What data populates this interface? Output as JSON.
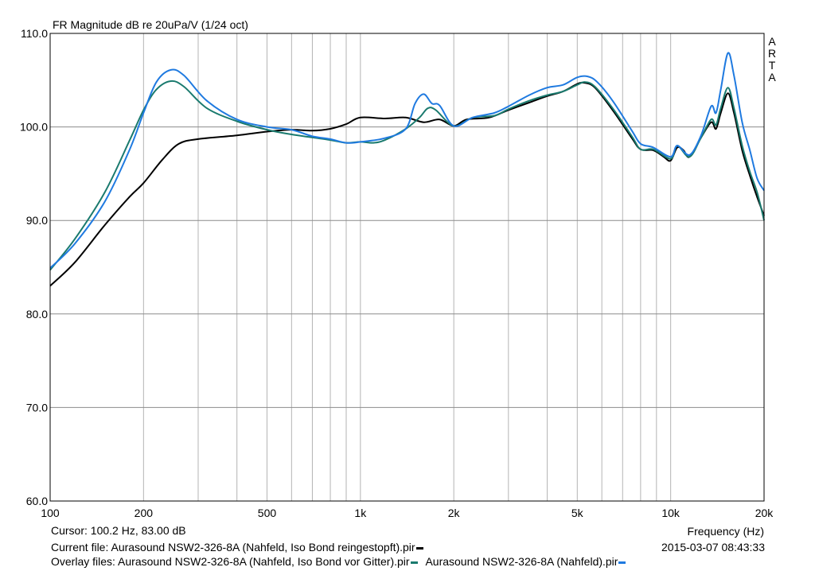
{
  "chart_data": {
    "type": "line",
    "title": "FR Magnitude dB re 20uPa/V (1/24 oct)",
    "xlabel": "Frequency (Hz)",
    "x_scale": "log",
    "xlim": [
      100,
      20000
    ],
    "ylim": [
      60,
      110
    ],
    "grid": true,
    "yticks": [
      {
        "v": 110,
        "label": "110.0"
      },
      {
        "v": 100,
        "label": "100.0"
      },
      {
        "v": 90,
        "label": "90.0"
      },
      {
        "v": 80,
        "label": "80.0"
      },
      {
        "v": 70,
        "label": "70.0"
      },
      {
        "v": 60,
        "label": "60.0"
      }
    ],
    "xticks": [
      {
        "v": 100,
        "label": "100"
      },
      {
        "v": 200,
        "label": "200"
      },
      {
        "v": 500,
        "label": "500"
      },
      {
        "v": 1000,
        "label": "1k"
      },
      {
        "v": 2000,
        "label": "2k"
      },
      {
        "v": 5000,
        "label": "5k"
      },
      {
        "v": 10000,
        "label": "10k"
      },
      {
        "v": 20000,
        "label": "20k"
      }
    ],
    "series": [
      {
        "name": "Aurasound NSW2-326-8A (Nahfeld, Iso Bond reingestopft).pir",
        "color": "#000000",
        "points": [
          [
            100,
            83.0
          ],
          [
            120,
            85.5
          ],
          [
            150,
            89.5
          ],
          [
            180,
            92.5
          ],
          [
            200,
            94.0
          ],
          [
            230,
            96.5
          ],
          [
            260,
            98.2
          ],
          [
            300,
            98.7
          ],
          [
            400,
            99.1
          ],
          [
            500,
            99.5
          ],
          [
            600,
            99.7
          ],
          [
            700,
            99.6
          ],
          [
            800,
            99.8
          ],
          [
            900,
            100.3
          ],
          [
            1000,
            101.0
          ],
          [
            1200,
            100.9
          ],
          [
            1400,
            101.0
          ],
          [
            1600,
            100.5
          ],
          [
            1800,
            100.8
          ],
          [
            2000,
            100.1
          ],
          [
            2200,
            100.8
          ],
          [
            2600,
            101.0
          ],
          [
            3000,
            101.8
          ],
          [
            3500,
            102.6
          ],
          [
            4000,
            103.3
          ],
          [
            4500,
            103.8
          ],
          [
            5000,
            104.6
          ],
          [
            5300,
            104.7
          ],
          [
            5700,
            104.2
          ],
          [
            6500,
            101.8
          ],
          [
            7500,
            98.8
          ],
          [
            8000,
            97.6
          ],
          [
            8800,
            97.5
          ],
          [
            9500,
            96.8
          ],
          [
            10000,
            96.4
          ],
          [
            10500,
            97.8
          ],
          [
            11000,
            97.5
          ],
          [
            11500,
            96.8
          ],
          [
            12500,
            98.8
          ],
          [
            13500,
            100.5
          ],
          [
            14000,
            99.8
          ],
          [
            14500,
            101.5
          ],
          [
            15300,
            103.6
          ],
          [
            16000,
            101.5
          ],
          [
            17000,
            97.5
          ],
          [
            18000,
            94.8
          ],
          [
            19000,
            92.5
          ],
          [
            20000,
            90.5
          ]
        ]
      },
      {
        "name": "Aurasound NSW2-326-8A (Nahfeld, Iso Bond vor Gitter).pir",
        "color": "#1a7a6e",
        "points": [
          [
            100,
            84.7
          ],
          [
            120,
            88.0
          ],
          [
            150,
            93.0
          ],
          [
            180,
            98.5
          ],
          [
            200,
            101.8
          ],
          [
            220,
            104.0
          ],
          [
            245,
            104.9
          ],
          [
            270,
            104.3
          ],
          [
            320,
            102.0
          ],
          [
            400,
            100.6
          ],
          [
            500,
            99.7
          ],
          [
            600,
            99.2
          ],
          [
            800,
            98.6
          ],
          [
            900,
            98.3
          ],
          [
            1000,
            98.4
          ],
          [
            1100,
            98.3
          ],
          [
            1200,
            98.6
          ],
          [
            1400,
            99.8
          ],
          [
            1550,
            101.0
          ],
          [
            1650,
            102.0
          ],
          [
            1750,
            101.8
          ],
          [
            2000,
            100.1
          ],
          [
            2300,
            101.0
          ],
          [
            2700,
            101.2
          ],
          [
            3000,
            101.9
          ],
          [
            3500,
            102.8
          ],
          [
            4000,
            103.4
          ],
          [
            4500,
            103.8
          ],
          [
            5000,
            104.5
          ],
          [
            5300,
            104.8
          ],
          [
            5700,
            104.3
          ],
          [
            6500,
            102.0
          ],
          [
            7500,
            99.0
          ],
          [
            8000,
            97.6
          ],
          [
            8800,
            97.6
          ],
          [
            10000,
            96.6
          ],
          [
            10500,
            98.0
          ],
          [
            11500,
            96.8
          ],
          [
            12500,
            98.8
          ],
          [
            13500,
            100.8
          ],
          [
            14000,
            100.2
          ],
          [
            14500,
            102.0
          ],
          [
            15300,
            104.2
          ],
          [
            16000,
            102.0
          ],
          [
            17000,
            98.0
          ],
          [
            18000,
            95.2
          ],
          [
            19000,
            93.0
          ],
          [
            20000,
            90.0
          ]
        ]
      },
      {
        "name": "Aurasound NSW2-326-8A (Nahfeld).pir",
        "color": "#1f7ae0",
        "points": [
          [
            100,
            84.9
          ],
          [
            120,
            87.5
          ],
          [
            150,
            92.0
          ],
          [
            180,
            97.5
          ],
          [
            200,
            101.5
          ],
          [
            220,
            104.8
          ],
          [
            245,
            106.1
          ],
          [
            270,
            105.5
          ],
          [
            320,
            102.8
          ],
          [
            400,
            100.8
          ],
          [
            500,
            100.0
          ],
          [
            600,
            99.7
          ],
          [
            700,
            99.0
          ],
          [
            800,
            98.7
          ],
          [
            900,
            98.3
          ],
          [
            1000,
            98.4
          ],
          [
            1200,
            98.8
          ],
          [
            1400,
            99.8
          ],
          [
            1500,
            102.5
          ],
          [
            1600,
            103.5
          ],
          [
            1700,
            102.5
          ],
          [
            1800,
            102.3
          ],
          [
            2000,
            100.1
          ],
          [
            2300,
            101.0
          ],
          [
            2700,
            101.5
          ],
          [
            3000,
            102.2
          ],
          [
            3500,
            103.4
          ],
          [
            4000,
            104.2
          ],
          [
            4500,
            104.5
          ],
          [
            5000,
            105.3
          ],
          [
            5400,
            105.4
          ],
          [
            5800,
            104.8
          ],
          [
            6500,
            102.8
          ],
          [
            7500,
            99.6
          ],
          [
            8000,
            98.2
          ],
          [
            8800,
            97.8
          ],
          [
            10000,
            96.8
          ],
          [
            10500,
            98.0
          ],
          [
            11500,
            97.0
          ],
          [
            12500,
            99.0
          ],
          [
            13500,
            102.2
          ],
          [
            14000,
            101.5
          ],
          [
            14500,
            104.0
          ],
          [
            15300,
            107.9
          ],
          [
            16000,
            105.5
          ],
          [
            17000,
            100.5
          ],
          [
            18000,
            97.5
          ],
          [
            19000,
            94.5
          ],
          [
            20000,
            93.2
          ]
        ]
      }
    ]
  },
  "side_label": "ARTA",
  "cursor_text": "Cursor: 100.2 Hz, 83.00 dB",
  "current_file_label": "Current file:",
  "current_file_name": "Aurasound NSW2-326-8A (Nahfeld, Iso Bond reingestopft).pir",
  "overlay_files_label": "Overlay files:",
  "overlay_file_1": "Aurasound NSW2-326-8A (Nahfeld, Iso Bond vor Gitter).pir",
  "overlay_file_2": "Aurasound NSW2-326-8A (Nahfeld).pir",
  "timestamp": "2015-03-07   08:43:33"
}
